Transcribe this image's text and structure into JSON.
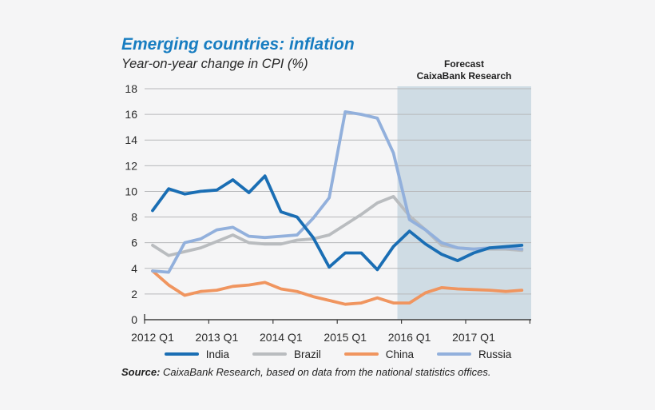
{
  "title": "Emerging countries: inflation",
  "subtitle": "Year-on-year change in CPI (%)",
  "forecast_label": {
    "line1": "Forecast",
    "line2": "CaixaBank Research"
  },
  "source": {
    "prefix": "Source:",
    "text": " CaixaBank Research, based on data from the national statistics offices."
  },
  "colors": {
    "title_blue": "#187dc1",
    "background": "#f5f5f6",
    "gridline": "#b7b8ba",
    "axis": "#3e3e3e",
    "text": "#1f1f1f"
  },
  "chart_data": {
    "type": "line",
    "title": "Emerging countries: inflation",
    "ylabel": "Year-on-year change in CPI (%)",
    "ylim": [
      0,
      18
    ],
    "yticks": [
      0,
      2,
      4,
      6,
      8,
      10,
      12,
      14,
      16,
      18
    ],
    "grid": true,
    "legend_position": "bottom",
    "xticklabels": [
      "2012 Q1",
      "2013 Q1",
      "2014 Q1",
      "2015 Q1",
      "2016 Q1",
      "2017 Q1"
    ],
    "x_categories": [
      "2012 Q1",
      "2012 Q2",
      "2012 Q3",
      "2012 Q4",
      "2013 Q1",
      "2013 Q2",
      "2013 Q3",
      "2013 Q4",
      "2014 Q1",
      "2014 Q2",
      "2014 Q3",
      "2014 Q4",
      "2015 Q1",
      "2015 Q2",
      "2015 Q3",
      "2015 Q4",
      "2016 Q1",
      "2016 Q2",
      "2016 Q3",
      "2016 Q4",
      "2017 Q1",
      "2017 Q2",
      "2017 Q3",
      "2017 Q4"
    ],
    "series": [
      {
        "name": "India",
        "color": "#1a6eb4",
        "values": [
          8.5,
          10.2,
          9.8,
          10.0,
          10.1,
          10.9,
          9.9,
          11.2,
          8.4,
          8.0,
          6.4,
          4.1,
          5.2,
          5.2,
          3.9,
          5.7,
          6.9,
          5.9,
          5.1,
          4.6,
          5.2,
          5.6,
          5.7,
          5.8
        ]
      },
      {
        "name": "Brazil",
        "color": "#b9bcbf",
        "values": [
          5.8,
          5.0,
          5.3,
          5.6,
          6.1,
          6.6,
          6.0,
          5.9,
          5.9,
          6.2,
          6.3,
          6.6,
          7.4,
          8.2,
          9.1,
          9.6,
          8.1,
          7.0,
          5.8,
          5.6,
          5.5,
          5.5,
          5.5,
          5.4
        ]
      },
      {
        "name": "China",
        "color": "#f0955f",
        "values": [
          3.8,
          2.7,
          1.9,
          2.2,
          2.3,
          2.6,
          2.7,
          2.9,
          2.4,
          2.2,
          1.8,
          1.5,
          1.2,
          1.3,
          1.7,
          1.3,
          1.3,
          2.1,
          2.5,
          2.4,
          2.35,
          2.3,
          2.2,
          2.3
        ]
      },
      {
        "name": "Russia",
        "color": "#92b0dc",
        "values": [
          3.8,
          3.7,
          6.0,
          6.3,
          7.0,
          7.2,
          6.5,
          6.4,
          6.5,
          6.6,
          7.9,
          9.5,
          16.2,
          16.0,
          15.7,
          13.0,
          7.8,
          7.0,
          6.0,
          5.6,
          5.5,
          5.6,
          5.6,
          5.5
        ]
      }
    ],
    "forecast_band": {
      "starts_at": "2016 Q1",
      "color": "#cfdce4"
    }
  }
}
